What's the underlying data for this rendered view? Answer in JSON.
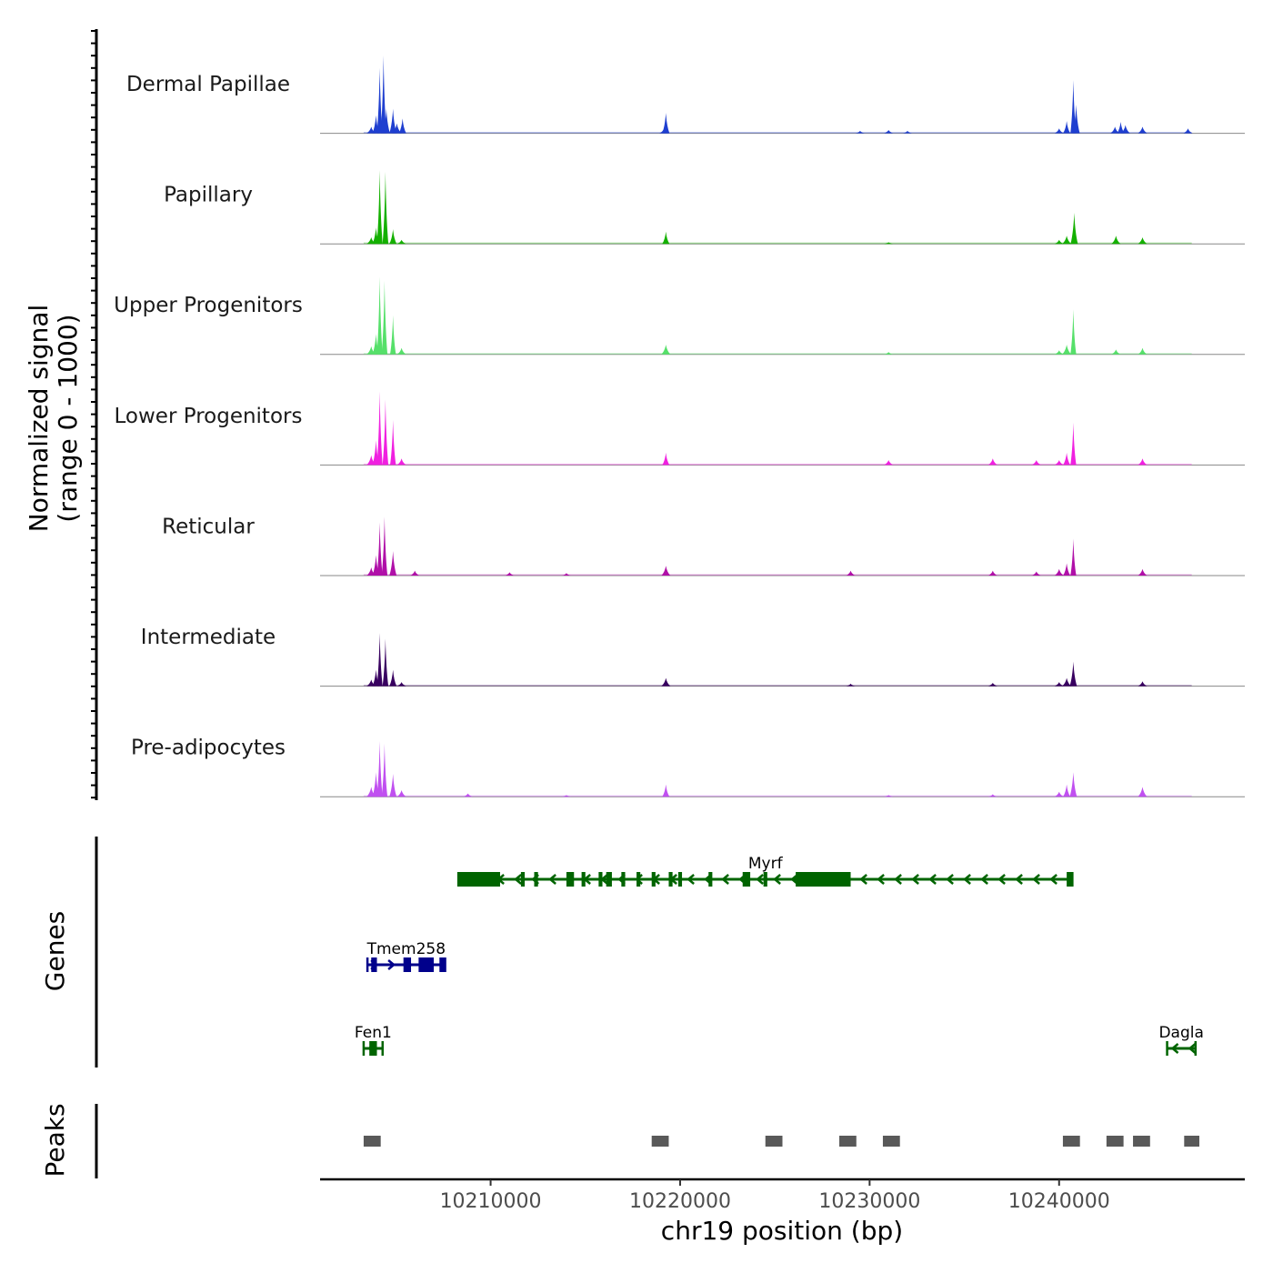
{
  "chart_data": {
    "type": "area",
    "chromosome": "chr19",
    "x_range": [
      10201000,
      10249800
    ],
    "xlabel": "chr19 position (bp)",
    "ylabel_line1": "Normalized signal",
    "ylabel_line2": "(range 0 - 1000)",
    "genes_label": "Genes",
    "peaks_label": "Peaks",
    "x_ticks": [
      10210000,
      10220000,
      10230000,
      10240000
    ],
    "x_tick_labels": [
      "10210000",
      "10220000",
      "10230000",
      "10240000"
    ],
    "tracks": [
      {
        "name": "Dermal Papillae",
        "color": "#1f3fd0",
        "peaks": [
          [
            10203700,
            0.08
          ],
          [
            10203950,
            0.22
          ],
          [
            10204150,
            0.8
          ],
          [
            10204350,
            0.95
          ],
          [
            10204500,
            0.3
          ],
          [
            10204850,
            0.3
          ],
          [
            10205050,
            0.12
          ],
          [
            10205350,
            0.18
          ],
          [
            10219150,
            0.06
          ],
          [
            10219250,
            0.25
          ],
          [
            10229500,
            0.03
          ],
          [
            10231000,
            0.04
          ],
          [
            10232000,
            0.03
          ],
          [
            10240000,
            0.06
          ],
          [
            10240400,
            0.15
          ],
          [
            10240750,
            0.65
          ],
          [
            10240900,
            0.35
          ],
          [
            10242950,
            0.08
          ],
          [
            10243250,
            0.14
          ],
          [
            10243500,
            0.1
          ],
          [
            10244400,
            0.08
          ],
          [
            10246800,
            0.06
          ]
        ]
      },
      {
        "name": "Papillary",
        "color": "#14b000",
        "peaks": [
          [
            10203700,
            0.08
          ],
          [
            10203950,
            0.2
          ],
          [
            10204150,
            0.9
          ],
          [
            10204450,
            0.88
          ],
          [
            10204850,
            0.18
          ],
          [
            10205300,
            0.05
          ],
          [
            10219250,
            0.15
          ],
          [
            10231000,
            0.02
          ],
          [
            10240000,
            0.05
          ],
          [
            10240400,
            0.1
          ],
          [
            10240800,
            0.38
          ],
          [
            10243000,
            0.1
          ],
          [
            10244400,
            0.08
          ]
        ]
      },
      {
        "name": "Upper Progenitors",
        "color": "#56e06a",
        "peaks": [
          [
            10203700,
            0.1
          ],
          [
            10203950,
            0.25
          ],
          [
            10204150,
            0.95
          ],
          [
            10204400,
            0.9
          ],
          [
            10204850,
            0.48
          ],
          [
            10205300,
            0.08
          ],
          [
            10219250,
            0.12
          ],
          [
            10231000,
            0.03
          ],
          [
            10240000,
            0.05
          ],
          [
            10240400,
            0.12
          ],
          [
            10240750,
            0.55
          ],
          [
            10243000,
            0.06
          ],
          [
            10244400,
            0.08
          ]
        ]
      },
      {
        "name": "Lower Progenitors",
        "color": "#f020e0",
        "peaks": [
          [
            10203700,
            0.12
          ],
          [
            10203950,
            0.3
          ],
          [
            10204150,
            0.9
          ],
          [
            10204450,
            0.8
          ],
          [
            10204850,
            0.55
          ],
          [
            10205300,
            0.08
          ],
          [
            10219250,
            0.15
          ],
          [
            10231000,
            0.06
          ],
          [
            10236500,
            0.08
          ],
          [
            10238800,
            0.06
          ],
          [
            10240000,
            0.06
          ],
          [
            10240400,
            0.15
          ],
          [
            10240750,
            0.52
          ],
          [
            10244400,
            0.08
          ]
        ]
      },
      {
        "name": "Reticular",
        "color": "#b010a8",
        "peaks": [
          [
            10203700,
            0.1
          ],
          [
            10203950,
            0.25
          ],
          [
            10204150,
            0.65
          ],
          [
            10204400,
            0.72
          ],
          [
            10204850,
            0.3
          ],
          [
            10206000,
            0.06
          ],
          [
            10211000,
            0.04
          ],
          [
            10214000,
            0.03
          ],
          [
            10219250,
            0.12
          ],
          [
            10229000,
            0.06
          ],
          [
            10236500,
            0.06
          ],
          [
            10238800,
            0.05
          ],
          [
            10240000,
            0.08
          ],
          [
            10240400,
            0.15
          ],
          [
            10240750,
            0.45
          ],
          [
            10244400,
            0.08
          ]
        ]
      },
      {
        "name": "Intermediate",
        "color": "#380060",
        "peaks": [
          [
            10203700,
            0.08
          ],
          [
            10203950,
            0.2
          ],
          [
            10204150,
            0.65
          ],
          [
            10204450,
            0.58
          ],
          [
            10204850,
            0.2
          ],
          [
            10205300,
            0.05
          ],
          [
            10219250,
            0.1
          ],
          [
            10229000,
            0.03
          ],
          [
            10236500,
            0.04
          ],
          [
            10240000,
            0.05
          ],
          [
            10240400,
            0.1
          ],
          [
            10240750,
            0.3
          ],
          [
            10244400,
            0.06
          ]
        ]
      },
      {
        "name": "Pre-adipocytes",
        "color": "#c050f0",
        "peaks": [
          [
            10203700,
            0.12
          ],
          [
            10203950,
            0.3
          ],
          [
            10204150,
            0.68
          ],
          [
            10204400,
            0.65
          ],
          [
            10204850,
            0.28
          ],
          [
            10205300,
            0.08
          ],
          [
            10208800,
            0.04
          ],
          [
            10214000,
            0.02
          ],
          [
            10219250,
            0.15
          ],
          [
            10231000,
            0.02
          ],
          [
            10236500,
            0.03
          ],
          [
            10240000,
            0.06
          ],
          [
            10240400,
            0.15
          ],
          [
            10240750,
            0.3
          ],
          [
            10244400,
            0.12
          ]
        ]
      }
    ],
    "genes": [
      {
        "name": "Myrf",
        "strand": "-",
        "start": 10208300,
        "end": 10240700,
        "color": "#006400",
        "row": 0,
        "exons": [
          [
            10208300,
            10210500
          ],
          [
            10211600,
            10211800
          ],
          [
            10212300,
            10212500
          ],
          [
            10214000,
            10214400
          ],
          [
            10214800,
            10215000
          ],
          [
            10215700,
            10215900
          ],
          [
            10216100,
            10216400
          ],
          [
            10216900,
            10217100
          ],
          [
            10217700,
            10217900
          ],
          [
            10218500,
            10218700
          ],
          [
            10219400,
            10219600
          ],
          [
            10219900,
            10220100
          ],
          [
            10221500,
            10221700
          ],
          [
            10223300,
            10223700
          ],
          [
            10224400,
            10224600
          ],
          [
            10226100,
            10229000
          ],
          [
            10240400,
            10240700
          ]
        ]
      },
      {
        "name": "Tmem258",
        "strand": "+",
        "start": 10203500,
        "end": 10207600,
        "color": "#00008b",
        "row": 1,
        "exons": [
          [
            10203700,
            10204000
          ],
          [
            10205400,
            10205800
          ],
          [
            10206200,
            10207000
          ],
          [
            10207300,
            10207600
          ]
        ]
      },
      {
        "name": "Fen1",
        "strand": "-",
        "start": 10203300,
        "end": 10204300,
        "color": "#006400",
        "row": 2,
        "exons": [
          [
            10203600,
            10204000
          ]
        ]
      },
      {
        "name": "Dagla",
        "strand": "-",
        "start": 10245700,
        "end": 10247200,
        "color": "#006400",
        "row": 2,
        "exons": []
      }
    ],
    "peak_regions": [
      [
        10203300,
        10204200
      ],
      [
        10218500,
        10219400
      ],
      [
        10224500,
        10225400
      ],
      [
        10228400,
        10229300
      ],
      [
        10230700,
        10231600
      ],
      [
        10240200,
        10241100
      ],
      [
        10242500,
        10243400
      ],
      [
        10243900,
        10244800
      ],
      [
        10246600,
        10247400
      ]
    ]
  }
}
